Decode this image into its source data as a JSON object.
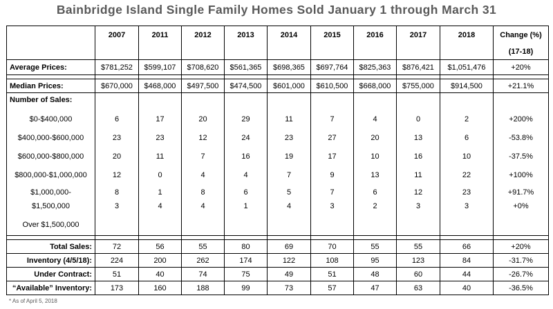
{
  "title": "Bainbridge Island Single Family Homes Sold January 1 through March 31",
  "header": {
    "years": [
      "2007",
      "2011",
      "2012",
      "2013",
      "2014",
      "2015",
      "2016",
      "2017",
      "2018"
    ],
    "change_label": "Change (%)",
    "change_sub": "(17-18)"
  },
  "rows": {
    "avg": {
      "label": "Average Prices:",
      "values": [
        "$781,252",
        "$599,107",
        "$708,620",
        "$561,365",
        "$698,365",
        "$697,764",
        "$825,363",
        "$876,421",
        "$1,051,476"
      ],
      "change": "+20%"
    },
    "median": {
      "label": "Median  Prices:",
      "values": [
        "$670,000",
        "$468,000",
        "$497,500",
        "$474,500",
        "$601,000",
        "$610,500",
        "$668,000",
        "$755,000",
        "$914,500"
      ],
      "change": "+21.1%"
    },
    "sales_heading": "Number of Sales:",
    "brackets": [
      {
        "label": "$0-$400,000",
        "values": [
          "6",
          "17",
          "20",
          "29",
          "11",
          "7",
          "4",
          "0",
          "2"
        ],
        "change": "+200%"
      },
      {
        "label": "$400,000-$600,000",
        "values": [
          "23",
          "23",
          "12",
          "24",
          "23",
          "27",
          "20",
          "13",
          "6"
        ],
        "change": "-53.8%"
      },
      {
        "label": "$600,000-$800,000",
        "values": [
          "20",
          "11",
          "7",
          "16",
          "19",
          "17",
          "10",
          "16",
          "10"
        ],
        "change": "-37.5%"
      },
      {
        "label": "$800,000-$1,000,000",
        "values": [
          "12",
          "0",
          "4",
          "4",
          "7",
          "9",
          "13",
          "11",
          "22"
        ],
        "change": "+100%"
      },
      {
        "label": "$1,000,000-",
        "values": [
          "8",
          "1",
          "8",
          "6",
          "5",
          "7",
          "6",
          "12",
          "23"
        ],
        "change": "+91.7%"
      },
      {
        "label": "$1,500,000",
        "values": [
          "3",
          "4",
          "4",
          "1",
          "4",
          "3",
          "2",
          "3",
          "3"
        ],
        "change": "+0%"
      },
      {
        "label": "Over $1,500,000"
      }
    ],
    "total": {
      "label": "Total Sales:",
      "values": [
        "72",
        "56",
        "55",
        "80",
        "69",
        "70",
        "55",
        "55",
        "66"
      ],
      "change": "+20%"
    },
    "inventory": {
      "label": "Inventory (4/5/18):",
      "values": [
        "224",
        "200",
        "262",
        "174",
        "122",
        "108",
        "95",
        "123",
        "84"
      ],
      "change": "-31.7%"
    },
    "contract": {
      "label": "Under Contract:",
      "values": [
        "51",
        "40",
        "74",
        "75",
        "49",
        "51",
        "48",
        "60",
        "44"
      ],
      "change": "-26.7%"
    },
    "available": {
      "label": "“Available” Inventory:",
      "values": [
        "173",
        "160",
        "188",
        "99",
        "73",
        "57",
        "47",
        "63",
        "40"
      ],
      "change": "-36.5%"
    }
  },
  "footnote": "* As of April 5, 2018"
}
